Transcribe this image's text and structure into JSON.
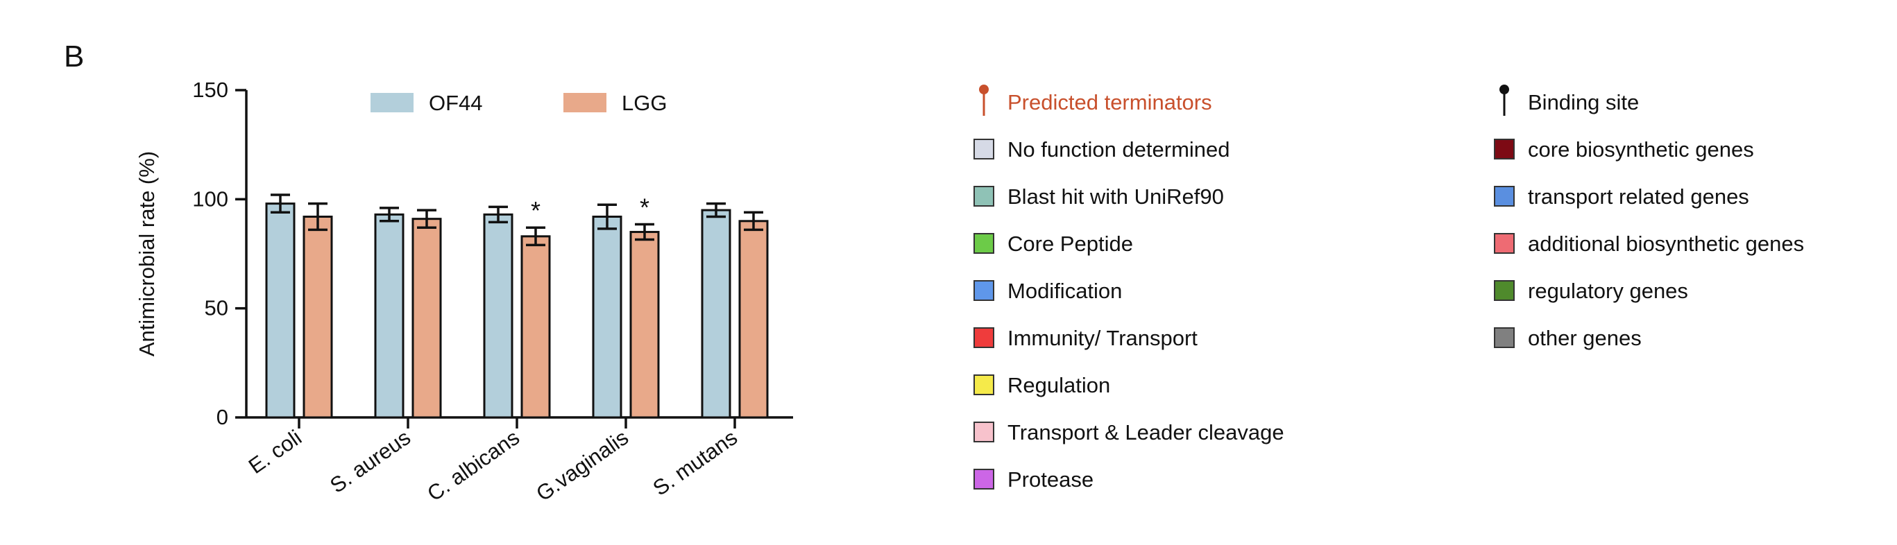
{
  "panel_label": "B",
  "colors": {
    "OF44": "#b3cfdb",
    "LGG": "#e8a98a",
    "axis": "#111111",
    "terminator": "#c8502c"
  },
  "chart_data": {
    "type": "bar",
    "title": "",
    "xlabel": "",
    "ylabel": "Antimicrobial rate (%)",
    "ylim": [
      0,
      150
    ],
    "yticks": [
      0,
      50,
      100,
      150
    ],
    "grid": false,
    "legend_position": "top",
    "categories": [
      "E. coli",
      "S. aureus",
      "C. albicans",
      "G.vaginalis",
      "S. mutans"
    ],
    "series": [
      {
        "name": "OF44",
        "values": [
          98,
          93,
          93,
          92,
          95
        ],
        "errors": [
          4,
          3,
          3.5,
          5.5,
          3
        ]
      },
      {
        "name": "LGG",
        "values": [
          92,
          91,
          83,
          85,
          90
        ],
        "errors": [
          6,
          4,
          4,
          3.5,
          4
        ]
      }
    ],
    "annotations": [
      {
        "category": "C. albicans",
        "series": "LGG",
        "text": "*"
      },
      {
        "category": "G.vaginalis",
        "series": "LGG",
        "text": "*"
      }
    ]
  },
  "legend_col1": [
    {
      "label": "Predicted terminators",
      "marker": "pin-icon",
      "color": "#c8502c",
      "text_color": "#c8502c"
    },
    {
      "label": "No function determined",
      "marker": "square",
      "color": "#d6dae6"
    },
    {
      "label": "Blast hit with UniRef90",
      "marker": "square",
      "color": "#8fc2b6"
    },
    {
      "label": "Core Peptide",
      "marker": "square",
      "color": "#6ccb48"
    },
    {
      "label": "Modification",
      "marker": "square",
      "color": "#5f97ea"
    },
    {
      "label": "Immunity/ Transport",
      "marker": "square",
      "color": "#ef3c3c"
    },
    {
      "label": "Regulation",
      "marker": "square",
      "color": "#f5ea4a"
    },
    {
      "label": "Transport & Leader cleavage",
      "marker": "square",
      "color": "#f7c2cc"
    },
    {
      "label": "Protease",
      "marker": "square",
      "color": "#cc66e6"
    }
  ],
  "legend_col2": [
    {
      "label": "Binding site",
      "marker": "pin-icon",
      "color": "#111111",
      "text_color": "#111111"
    },
    {
      "label": "core biosynthetic genes",
      "marker": "square",
      "color": "#7d0a14"
    },
    {
      "label": "transport related genes",
      "marker": "square",
      "color": "#5a8fe0"
    },
    {
      "label": "additional biosynthetic genes",
      "marker": "square",
      "color": "#ee6b73"
    },
    {
      "label": "regulatory genes",
      "marker": "square",
      "color": "#4f8a2c"
    },
    {
      "label": "other genes",
      "marker": "square",
      "color": "#808080"
    }
  ]
}
